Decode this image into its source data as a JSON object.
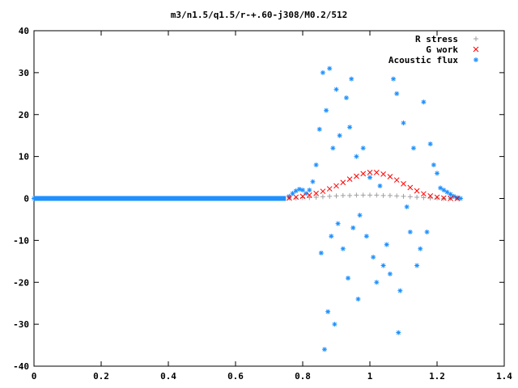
{
  "chart_data": {
    "type": "scatter",
    "title": "m3/n1.5/q1.5/r-+.60-j308/M0.2/512",
    "xlabel": "",
    "ylabel": "",
    "xlim": [
      0,
      1.4
    ],
    "ylim": [
      -40,
      40
    ],
    "x_ticks": [
      "0",
      "0.2",
      "0.4",
      "0.6",
      "0.8",
      "1",
      "1.2",
      "1.4"
    ],
    "y_ticks": [
      "40",
      "30",
      "20",
      "10",
      "0",
      "-10",
      "-20",
      "-30",
      "-40"
    ],
    "grid": false,
    "legend_position": "top-right",
    "series": [
      {
        "name": "R stress",
        "color": "#a0a0a0",
        "marker": "plus",
        "points": [
          [
            0.0,
            0.0
          ],
          [
            0.1,
            0.0
          ],
          [
            0.2,
            0.0
          ],
          [
            0.3,
            0.0
          ],
          [
            0.4,
            0.0
          ],
          [
            0.5,
            0.0
          ],
          [
            0.6,
            0.0
          ],
          [
            0.7,
            0.0
          ],
          [
            0.76,
            0.1
          ],
          [
            0.78,
            0.1
          ],
          [
            0.8,
            0.2
          ],
          [
            0.82,
            0.2
          ],
          [
            0.84,
            0.3
          ],
          [
            0.86,
            0.4
          ],
          [
            0.88,
            0.5
          ],
          [
            0.9,
            0.6
          ],
          [
            0.92,
            0.7
          ],
          [
            0.94,
            0.7
          ],
          [
            0.96,
            0.8
          ],
          [
            0.98,
            0.8
          ],
          [
            1.0,
            0.8
          ],
          [
            1.02,
            0.8
          ],
          [
            1.04,
            0.7
          ],
          [
            1.06,
            0.7
          ],
          [
            1.08,
            0.6
          ],
          [
            1.1,
            0.5
          ],
          [
            1.12,
            0.4
          ],
          [
            1.14,
            0.3
          ],
          [
            1.16,
            0.2
          ],
          [
            1.18,
            0.1
          ],
          [
            1.2,
            0.1
          ],
          [
            1.22,
            0.0
          ],
          [
            1.24,
            0.0
          ],
          [
            1.26,
            0.0
          ]
        ]
      },
      {
        "name": "G work",
        "color": "#ff0000",
        "marker": "cross",
        "points": [
          [
            0.76,
            0.1
          ],
          [
            0.78,
            0.3
          ],
          [
            0.8,
            0.5
          ],
          [
            0.82,
            0.8
          ],
          [
            0.84,
            1.2
          ],
          [
            0.86,
            1.7
          ],
          [
            0.88,
            2.3
          ],
          [
            0.9,
            3.0
          ],
          [
            0.92,
            3.8
          ],
          [
            0.94,
            4.6
          ],
          [
            0.96,
            5.3
          ],
          [
            0.98,
            5.9
          ],
          [
            1.0,
            6.2
          ],
          [
            1.02,
            6.2
          ],
          [
            1.04,
            5.8
          ],
          [
            1.06,
            5.2
          ],
          [
            1.08,
            4.4
          ],
          [
            1.1,
            3.5
          ],
          [
            1.12,
            2.6
          ],
          [
            1.14,
            1.8
          ],
          [
            1.16,
            1.1
          ],
          [
            1.18,
            0.6
          ],
          [
            1.2,
            0.3
          ],
          [
            1.22,
            0.1
          ],
          [
            1.24,
            0.0
          ],
          [
            1.26,
            0.0
          ]
        ]
      },
      {
        "name": "Acoustic flux",
        "color": "#1e90ff",
        "marker": "star",
        "points": [
          [
            0.0,
            0.0
          ],
          [
            0.05,
            0.0
          ],
          [
            0.1,
            0.0
          ],
          [
            0.15,
            0.0
          ],
          [
            0.2,
            0.0
          ],
          [
            0.25,
            0.0
          ],
          [
            0.3,
            0.0
          ],
          [
            0.35,
            0.0
          ],
          [
            0.4,
            0.0
          ],
          [
            0.45,
            0.0
          ],
          [
            0.5,
            0.0
          ],
          [
            0.55,
            0.0
          ],
          [
            0.6,
            0.0
          ],
          [
            0.65,
            0.0
          ],
          [
            0.7,
            0.0
          ],
          [
            0.74,
            0.0
          ],
          [
            0.76,
            0.5
          ],
          [
            0.77,
            1.2
          ],
          [
            0.78,
            1.8
          ],
          [
            0.79,
            2.2
          ],
          [
            0.8,
            2.0
          ],
          [
            0.81,
            1.2
          ],
          [
            0.82,
            2.0
          ],
          [
            0.83,
            4.0
          ],
          [
            0.84,
            8.0
          ],
          [
            0.85,
            16.5
          ],
          [
            0.855,
            -13.0
          ],
          [
            0.86,
            30.0
          ],
          [
            0.865,
            -36.0
          ],
          [
            0.87,
            21.0
          ],
          [
            0.875,
            -27.0
          ],
          [
            0.88,
            31.0
          ],
          [
            0.885,
            -9.0
          ],
          [
            0.89,
            12.0
          ],
          [
            0.895,
            -30.0
          ],
          [
            0.9,
            26.0
          ],
          [
            0.905,
            -6.0
          ],
          [
            0.91,
            15.0
          ],
          [
            0.92,
            -12.0
          ],
          [
            0.93,
            24.0
          ],
          [
            0.935,
            -19.0
          ],
          [
            0.94,
            17.0
          ],
          [
            0.945,
            28.5
          ],
          [
            0.95,
            -7.0
          ],
          [
            0.96,
            10.0
          ],
          [
            0.965,
            -24.0
          ],
          [
            0.97,
            -4.0
          ],
          [
            0.98,
            12.0
          ],
          [
            0.99,
            -9.0
          ],
          [
            1.0,
            5.0
          ],
          [
            1.01,
            -14.0
          ],
          [
            1.02,
            -20.0
          ],
          [
            1.03,
            3.0
          ],
          [
            1.04,
            -16.0
          ],
          [
            1.05,
            -11.0
          ],
          [
            1.06,
            -18.0
          ],
          [
            1.07,
            28.5
          ],
          [
            1.08,
            25.0
          ],
          [
            1.085,
            -32.0
          ],
          [
            1.09,
            -22.0
          ],
          [
            1.1,
            18.0
          ],
          [
            1.11,
            -2.0
          ],
          [
            1.12,
            -8.0
          ],
          [
            1.13,
            12.0
          ],
          [
            1.14,
            -16.0
          ],
          [
            1.15,
            -12.0
          ],
          [
            1.16,
            23.0
          ],
          [
            1.17,
            -8.0
          ],
          [
            1.18,
            13.0
          ],
          [
            1.19,
            8.0
          ],
          [
            1.2,
            6.0
          ],
          [
            1.21,
            2.5
          ],
          [
            1.22,
            2.0
          ],
          [
            1.23,
            1.5
          ],
          [
            1.24,
            1.0
          ],
          [
            1.25,
            0.5
          ],
          [
            1.26,
            0.2
          ],
          [
            1.27,
            0.0
          ]
        ]
      }
    ]
  }
}
